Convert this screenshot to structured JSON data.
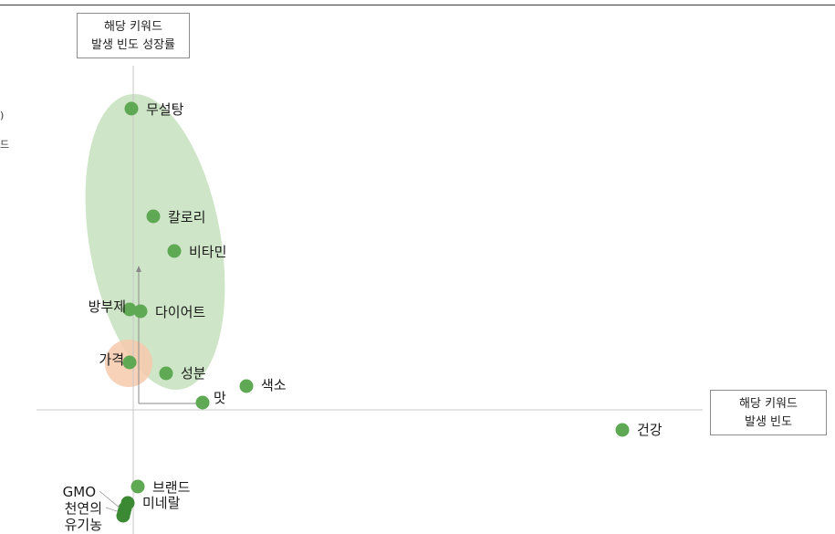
{
  "chart_data": {
    "type": "scatter",
    "xlabel": "해당 키워드\n발생 빈도",
    "ylabel": "해당 키워드\n발생 빈도 성장률",
    "grid": false,
    "points": [
      {
        "label": "무설탕",
        "x": -0.02,
        "y": 1.65
      },
      {
        "label": "칼로리",
        "x": 0.22,
        "y": 1.06
      },
      {
        "label": "비타민",
        "x": 0.45,
        "y": 0.87
      },
      {
        "label": "방부제",
        "x": -0.04,
        "y": 0.55
      },
      {
        "label": "다이어트",
        "x": 0.08,
        "y": 0.54
      },
      {
        "label": "가격",
        "x": -0.04,
        "y": 0.26
      },
      {
        "label": "성분",
        "x": 0.36,
        "y": 0.2
      },
      {
        "label": "색소",
        "x": 1.24,
        "y": 0.13
      },
      {
        "label": "맛",
        "x": 0.76,
        "y": 0.04
      },
      {
        "label": "건강",
        "x": 5.36,
        "y": -0.11
      },
      {
        "label": "브랜드",
        "x": 0.05,
        "y": -0.42
      },
      {
        "label": "미네랄",
        "x": -0.06,
        "y": -0.51
      },
      {
        "label": "GMO",
        "x": -0.09,
        "y": -0.54
      },
      {
        "label": "천연의",
        "x": -0.1,
        "y": -0.56
      },
      {
        "label": "유기농",
        "x": -0.11,
        "y": -0.58
      }
    ],
    "highlight_regions": [
      {
        "shape": "ellipse",
        "color": "#c5e2bd",
        "covers": [
          "무설탕",
          "칼로리",
          "비타민",
          "방부제",
          "다이어트",
          "가격",
          "성분"
        ]
      },
      {
        "shape": "circle",
        "color": "#f7c9ad",
        "covers": [
          "가격"
        ]
      }
    ]
  },
  "colors": {
    "point": "#5fa854",
    "point_dark": "#3b8a33",
    "axis": "#c8c8c8",
    "green_region": "#c5e2bd",
    "orange_region": "#f7c9ad"
  },
  "edge_marks": [
    ")",
    "드"
  ]
}
